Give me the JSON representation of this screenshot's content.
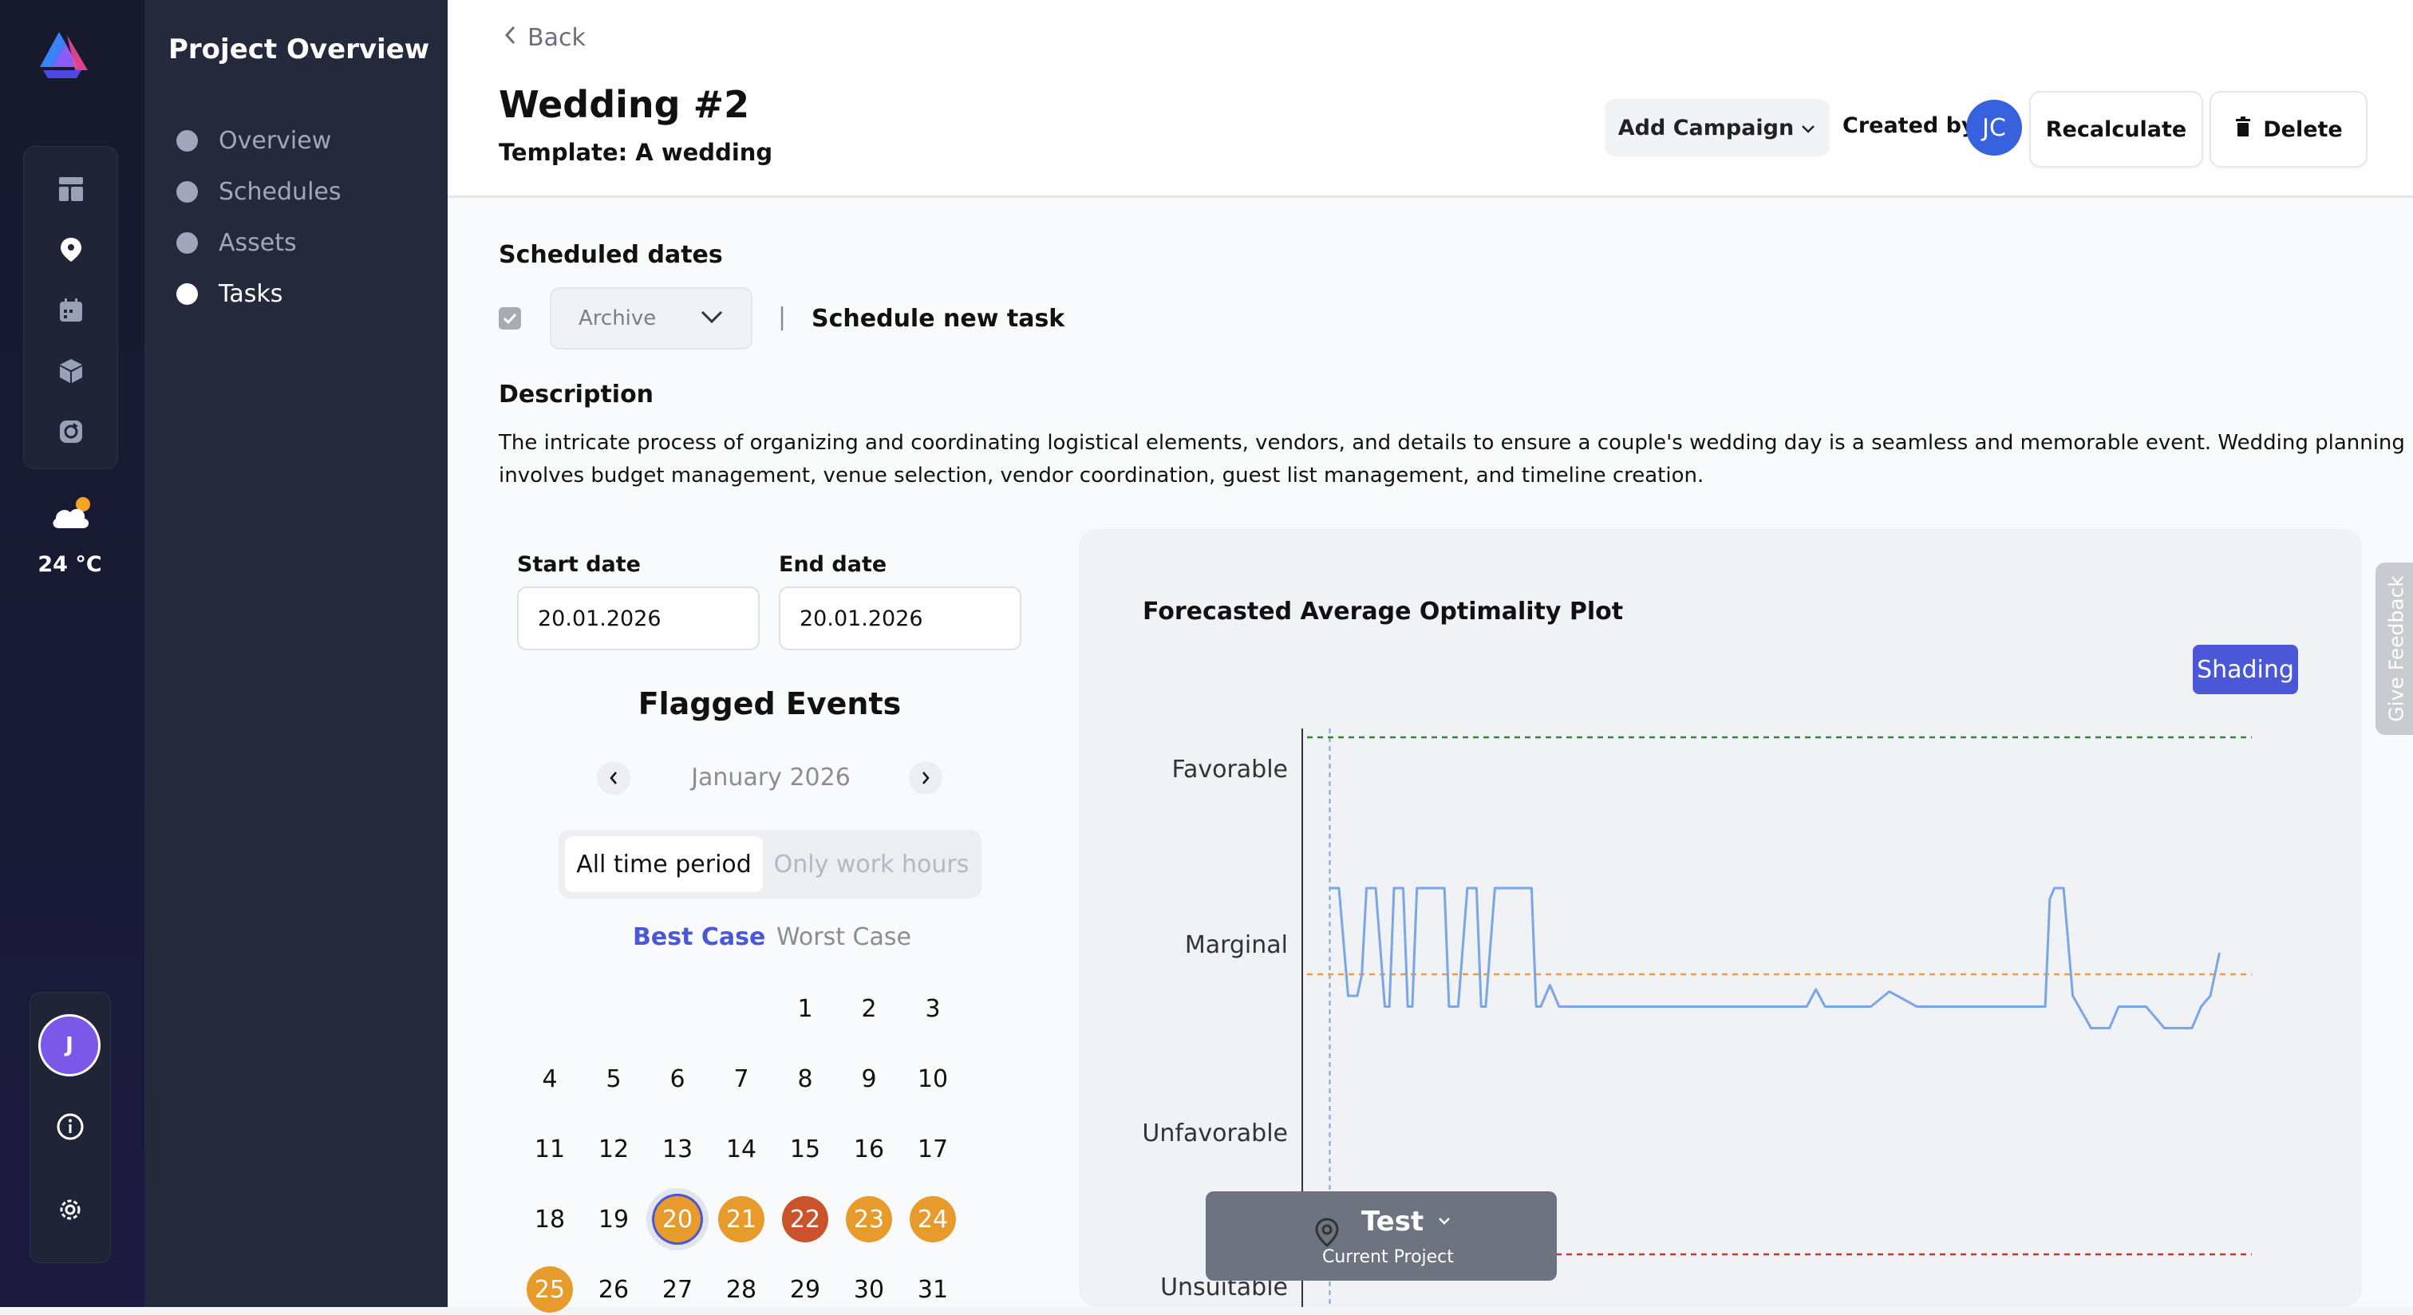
{
  "sidebar_rail": {
    "logo": "logo-icon",
    "icons": [
      "dashboard-icon",
      "location-pin-icon",
      "calendar-icon",
      "cube-icon",
      "refresh-icon"
    ],
    "weather": {
      "icon": "cloud-sun-icon",
      "temperature": "24 °C"
    },
    "user_avatar_initial": "J",
    "bottom_icons": [
      "info-icon",
      "gear-icon"
    ]
  },
  "nav": {
    "title": "Project Overview",
    "items": [
      {
        "label": "Overview",
        "active": false
      },
      {
        "label": "Schedules",
        "active": false
      },
      {
        "label": "Assets",
        "active": false
      },
      {
        "label": "Tasks",
        "active": true
      }
    ]
  },
  "header": {
    "back_label": "Back",
    "title": "Wedding #2",
    "template": "Template: A wedding",
    "add_campaign_label": "Add Campaign",
    "created_by_label": "Created by:",
    "creator_initials": "JC",
    "recalculate_label": "Recalculate",
    "delete_label": "Delete"
  },
  "scheduled": {
    "title": "Scheduled dates",
    "checkbox_checked": true,
    "select_value": "Archive",
    "separator": "|",
    "schedule_new_label": "Schedule new task"
  },
  "description": {
    "title": "Description",
    "text": "The intricate process of organizing and coordinating logistical elements, vendors, and details to ensure a couple's wedding day is a seamless and memorable event. Wedding planning involves budget management, venue selection, vendor coordination, guest list management, and timeline creation."
  },
  "dates": {
    "start_label": "Start date",
    "start_value": "20.01.2026",
    "end_label": "End date",
    "end_value": "20.01.2026"
  },
  "calendar": {
    "title": "Flagged Events",
    "month": "January 2026",
    "toggle": {
      "options": [
        "All time period",
        "Only work hours"
      ],
      "selected": "All time period"
    },
    "case_tabs": {
      "options": [
        "Best Case",
        "Worst Case"
      ],
      "selected": "Best Case"
    },
    "weeks": [
      [
        "",
        "",
        "",
        "",
        "1",
        "2",
        "3"
      ],
      [
        "4",
        "5",
        "6",
        "7",
        "8",
        "9",
        "10"
      ],
      [
        "11",
        "12",
        "13",
        "14",
        "15",
        "16",
        "17"
      ],
      [
        "18",
        "19",
        "20",
        "21",
        "22",
        "23",
        "24"
      ],
      [
        "25",
        "26",
        "27",
        "28",
        "29",
        "30",
        "31"
      ]
    ],
    "flagged": {
      "20": {
        "color": "#e69b2c",
        "selected": true
      },
      "21": {
        "color": "#e69b2c"
      },
      "22": {
        "color": "#c9532a"
      },
      "23": {
        "color": "#e69b2c"
      },
      "24": {
        "color": "#e69b2c"
      },
      "25": {
        "color": "#e69b2c"
      }
    }
  },
  "chart_panel": {
    "title": "Forecasted Average Optimality Plot",
    "shading_label": "Shading",
    "feedback_label": "Give Feedback",
    "test_popup": {
      "label": "Test",
      "sublabel": "Current Project",
      "icon": "location-pin-icon"
    }
  },
  "chart_data": {
    "type": "line",
    "title": "Forecasted Average Optimality Plot",
    "y_categories": [
      "Favorable",
      "Marginal",
      "Unfavorable",
      "Unsuitable"
    ],
    "ylim": [
      0,
      3.2
    ],
    "thresholds": [
      {
        "value": 2.7,
        "color": "#2e8b2e",
        "style": "dashed"
      },
      {
        "value": 1.6,
        "color": "#e6a040",
        "style": "dashed"
      },
      {
        "value": 0.3,
        "color": "#c0392b",
        "style": "dashed"
      }
    ],
    "xlim": [
      0,
      100
    ],
    "current_x": 1,
    "series": [
      {
        "color": "#7aa6e6",
        "x": [
          1,
          2,
          3,
          4,
          4.5,
          5,
          6,
          7,
          7.5,
          8,
          9,
          9.5,
          10,
          10.5,
          11,
          12,
          13,
          13.5,
          14,
          15,
          16,
          17,
          17.5,
          18,
          19,
          20,
          21,
          22,
          23,
          23.5,
          24,
          25,
          26,
          27,
          28,
          29,
          30,
          32,
          35,
          40,
          45,
          50,
          53,
          54,
          55,
          60,
          59,
          60,
          62,
          65,
          68,
          70,
          72,
          75,
          77,
          78,
          79,
          79.5,
          80,
          81,
          82,
          84,
          85,
          86,
          87,
          88,
          89,
          90,
          92,
          93,
          94,
          95,
          96,
          97,
          98
        ],
        "y": [
          2.0,
          2.0,
          1.5,
          1.5,
          1.6,
          2.0,
          2.0,
          1.45,
          1.45,
          2.0,
          2.0,
          1.45,
          1.45,
          2.0,
          2.0,
          2.0,
          2.0,
          2.0,
          1.45,
          1.45,
          2.0,
          2.0,
          1.45,
          1.45,
          2.0,
          2.0,
          2.0,
          2.0,
          2.0,
          1.45,
          1.45,
          1.55,
          1.45,
          1.45,
          1.45,
          1.45,
          1.45,
          1.45,
          1.45,
          1.45,
          1.45,
          1.45,
          1.45,
          1.53,
          1.45,
          1.45,
          1.45,
          1.45,
          1.52,
          1.45,
          1.45,
          1.45,
          1.45,
          1.45,
          1.45,
          1.45,
          1.45,
          1.95,
          2.0,
          2.0,
          1.5,
          1.35,
          1.35,
          1.35,
          1.45,
          1.45,
          1.45,
          1.45,
          1.35,
          1.35,
          1.35,
          1.35,
          1.45,
          1.5,
          1.7
        ]
      }
    ]
  }
}
